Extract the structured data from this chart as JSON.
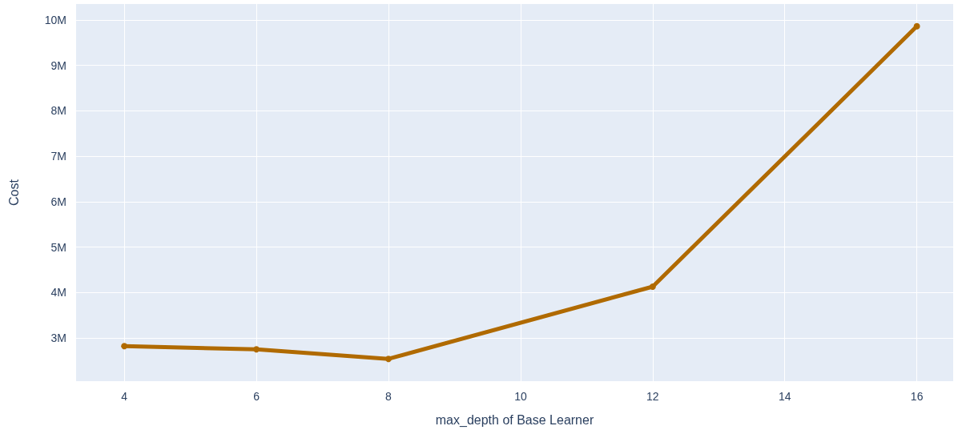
{
  "chart_data": {
    "type": "line",
    "xlabel": "max_depth of Base Learner",
    "ylabel": "Cost",
    "x": [
      4,
      6,
      8,
      12,
      16
    ],
    "series": [
      {
        "color": "#b06a00",
        "values": [
          2820000,
          2750000,
          2540000,
          4130000,
          9860000
        ]
      }
    ],
    "xlim": [
      3.27,
      16.55
    ],
    "xticks": [
      4,
      6,
      8,
      10,
      12,
      14,
      16
    ],
    "ylim": [
      2050000,
      10350000
    ],
    "yticks": [
      {
        "value": 3000000,
        "label": "3M"
      },
      {
        "value": 4000000,
        "label": "4M"
      },
      {
        "value": 5000000,
        "label": "5M"
      },
      {
        "value": 6000000,
        "label": "6M"
      },
      {
        "value": 7000000,
        "label": "7M"
      },
      {
        "value": 8000000,
        "label": "8M"
      },
      {
        "value": 9000000,
        "label": "9M"
      },
      {
        "value": 10000000,
        "label": "10M"
      }
    ],
    "grid": true,
    "marker": "circle",
    "line_style": "solid"
  }
}
